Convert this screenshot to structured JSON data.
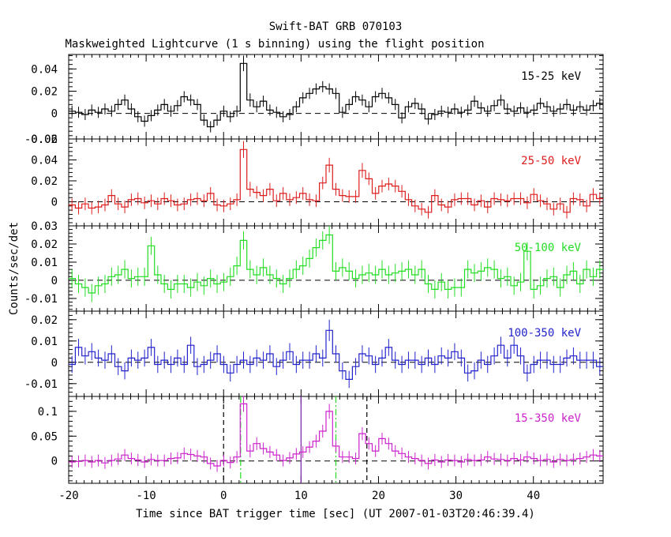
{
  "chart_data": {
    "type": "line",
    "title": "Swift-BAT GRB 070103",
    "subtitle": "Maskweighted Lightcurve (1 s binning) using the flight position",
    "xlabel": "Time since BAT trigger time [sec] (UT 2007-01-03T20:46:39.4)",
    "ylabel": "Counts/sec/det",
    "xlim": [
      -20,
      49
    ],
    "xticks": [
      -20,
      -10,
      0,
      10,
      20,
      30,
      40
    ],
    "panels": [
      {
        "name": "15-25 keV",
        "color": "#000000",
        "ylim": [
          -0.023,
          0.053
        ],
        "yticks": [
          0,
          0.02,
          0.04
        ],
        "ytick_labels": [
          "0",
          "0.02",
          "0.04"
        ],
        "bottom_label": "-0.02",
        "values": [
          0.002,
          0.001,
          -0.001,
          0.003,
          0.001,
          0.004,
          0.002,
          0.008,
          0.012,
          0.004,
          -0.003,
          -0.007,
          -0.002,
          0.003,
          0.008,
          0.002,
          0.007,
          0.015,
          0.012,
          0.008,
          -0.006,
          -0.012,
          -0.006,
          0.002,
          -0.003,
          0.002,
          0.045,
          0.012,
          0.006,
          0.011,
          0.003,
          0.001,
          -0.003,
          -0.001,
          0.006,
          0.014,
          0.018,
          0.022,
          0.024,
          0.022,
          0.018,
          0.001,
          0.008,
          0.015,
          0.012,
          0.006,
          0.015,
          0.018,
          0.014,
          0.008,
          -0.004,
          0.006,
          0.009,
          0.004,
          -0.005,
          -0.001,
          0.002,
          0.001,
          0.004,
          0.001,
          0.003,
          0.011,
          0.005,
          0.002,
          0.007,
          0.012,
          0.004,
          0.002,
          0.005,
          0.001,
          0.003,
          0.009,
          0.006,
          0.002,
          0.004,
          0.008,
          0.003,
          0.006,
          0.003,
          0.007,
          0.009
        ],
        "errors": [
          0.005,
          0.005,
          0.005,
          0.005,
          0.005,
          0.005,
          0.005,
          0.005,
          0.005,
          0.005,
          0.005,
          0.005,
          0.005,
          0.005,
          0.005,
          0.005,
          0.005,
          0.005,
          0.005,
          0.005,
          0.005,
          0.005,
          0.005,
          0.005,
          0.005,
          0.005,
          0.007,
          0.006,
          0.005,
          0.005,
          0.005,
          0.005,
          0.005,
          0.005,
          0.005,
          0.005,
          0.005,
          0.005,
          0.005,
          0.005,
          0.005,
          0.005,
          0.005,
          0.005,
          0.005,
          0.005,
          0.005,
          0.005,
          0.005,
          0.005,
          0.005,
          0.005,
          0.005,
          0.005,
          0.005,
          0.005,
          0.005,
          0.005,
          0.005,
          0.005,
          0.005,
          0.005,
          0.005,
          0.005,
          0.005,
          0.005,
          0.005,
          0.005,
          0.005,
          0.005,
          0.005,
          0.005,
          0.005,
          0.005,
          0.005,
          0.005,
          0.005,
          0.005,
          0.005,
          0.005,
          0.005
        ]
      },
      {
        "name": "25-50 keV",
        "color": "#dd1c1c",
        "ylim": [
          -0.023,
          0.06
        ],
        "yticks": [
          0,
          0.02,
          0.04
        ],
        "ytick_labels": [
          "0",
          "0.02",
          "0.04"
        ],
        "top_label": "0.06",
        "values": [
          -0.003,
          -0.006,
          -0.002,
          -0.006,
          -0.005,
          -0.003,
          0.006,
          -0.002,
          -0.005,
          0.002,
          0.003,
          -0.001,
          0.001,
          -0.002,
          0.003,
          0.001,
          -0.003,
          -0.002,
          0.002,
          0.003,
          0.001,
          0.008,
          -0.003,
          -0.004,
          -0.002,
          0.002,
          0.05,
          0.012,
          0.009,
          0.006,
          0.012,
          0.001,
          0.008,
          0.002,
          0.004,
          0.008,
          0.002,
          0.001,
          0.018,
          0.035,
          0.012,
          0.006,
          0.005,
          0.005,
          0.03,
          0.022,
          0.008,
          0.015,
          0.017,
          0.015,
          0.01,
          0.002,
          -0.004,
          -0.007,
          -0.01,
          0.006,
          -0.003,
          -0.005,
          0.002,
          0.003,
          0.003,
          -0.003,
          0.001,
          -0.005,
          0.003,
          0.002,
          0.001,
          0.003,
          0.003,
          -0.001,
          0.007,
          0.001,
          -0.002,
          -0.007,
          -0.002,
          -0.01,
          0.003,
          0.002,
          -0.004,
          0.007,
          0.003
        ],
        "errors": [
          0.006,
          0.006,
          0.006,
          0.006,
          0.006,
          0.006,
          0.006,
          0.006,
          0.006,
          0.006,
          0.006,
          0.006,
          0.006,
          0.006,
          0.006,
          0.006,
          0.006,
          0.006,
          0.006,
          0.006,
          0.006,
          0.006,
          0.006,
          0.006,
          0.006,
          0.006,
          0.008,
          0.007,
          0.006,
          0.006,
          0.006,
          0.006,
          0.006,
          0.006,
          0.006,
          0.006,
          0.006,
          0.006,
          0.006,
          0.007,
          0.006,
          0.006,
          0.006,
          0.006,
          0.007,
          0.006,
          0.006,
          0.006,
          0.006,
          0.006,
          0.006,
          0.006,
          0.006,
          0.006,
          0.006,
          0.006,
          0.006,
          0.006,
          0.006,
          0.006,
          0.006,
          0.006,
          0.006,
          0.006,
          0.006,
          0.006,
          0.006,
          0.006,
          0.006,
          0.006,
          0.006,
          0.006,
          0.006,
          0.006,
          0.006,
          0.006,
          0.006,
          0.006,
          0.006,
          0.006,
          0.006
        ]
      },
      {
        "name": "50-100 keV",
        "color": "#22dd22",
        "ylim": [
          -0.017,
          0.03
        ],
        "yticks": [
          -0.01,
          0,
          0.01,
          0.02
        ],
        "ytick_labels": [
          "-0.01",
          "0",
          "0.01",
          "0.02"
        ],
        "top_label": "0.03",
        "values": [
          0.001,
          -0.002,
          -0.004,
          -0.007,
          -0.003,
          -0.002,
          0.002,
          0.003,
          0.006,
          0.001,
          0.002,
          0.002,
          0.019,
          0.003,
          -0.002,
          -0.005,
          -0.002,
          -0.002,
          -0.004,
          -0.001,
          -0.003,
          0.001,
          -0.002,
          -0.001,
          0.002,
          0.008,
          0.022,
          0.006,
          0.003,
          0.007,
          0.003,
          0.001,
          -0.002,
          0.001,
          0.006,
          0.008,
          0.012,
          0.018,
          0.022,
          0.025,
          0.005,
          0.007,
          0.005,
          0.001,
          0.003,
          0.004,
          0.003,
          0.006,
          0.003,
          0.004,
          0.005,
          0.006,
          0.003,
          0.006,
          -0.002,
          -0.005,
          -0.001,
          -0.005,
          -0.004,
          -0.004,
          0.006,
          0.004,
          0.005,
          0.007,
          0.006,
          0.001,
          0.002,
          -0.003,
          -0.001,
          0.016,
          -0.005,
          -0.003,
          0.001,
          0.002,
          -0.004,
          0.003,
          0.005,
          -0.002,
          0.006,
          0.002,
          0.006
        ],
        "errors": [
          0.005,
          0.005,
          0.005,
          0.005,
          0.005,
          0.005,
          0.005,
          0.005,
          0.005,
          0.005,
          0.005,
          0.005,
          0.005,
          0.005,
          0.005,
          0.005,
          0.005,
          0.005,
          0.005,
          0.005,
          0.005,
          0.005,
          0.005,
          0.005,
          0.005,
          0.005,
          0.005,
          0.005,
          0.005,
          0.005,
          0.005,
          0.005,
          0.005,
          0.005,
          0.005,
          0.005,
          0.005,
          0.005,
          0.005,
          0.005,
          0.005,
          0.005,
          0.005,
          0.005,
          0.005,
          0.005,
          0.005,
          0.005,
          0.005,
          0.005,
          0.005,
          0.005,
          0.005,
          0.005,
          0.005,
          0.005,
          0.005,
          0.005,
          0.005,
          0.005,
          0.005,
          0.005,
          0.005,
          0.005,
          0.005,
          0.005,
          0.005,
          0.005,
          0.005,
          0.005,
          0.005,
          0.005,
          0.005,
          0.005,
          0.005,
          0.005,
          0.005,
          0.005,
          0.005,
          0.005,
          0.005
        ]
      },
      {
        "name": "100-350 keV",
        "color": "#2222cc",
        "ylim": [
          -0.016,
          0.024
        ],
        "yticks": [
          -0.01,
          0,
          0.01,
          0.02
        ],
        "ytick_labels": [
          "-0.01",
          "0",
          "0.01",
          "0.02"
        ],
        "values": [
          -0.001,
          0.007,
          0.003,
          0.005,
          0.002,
          0.001,
          0.004,
          -0.002,
          -0.004,
          0.002,
          0.001,
          0.002,
          0.007,
          -0.001,
          0.001,
          -0.001,
          0.002,
          -0.001,
          0.008,
          -0.002,
          -0.001,
          0.001,
          0.004,
          -0.001,
          -0.005,
          -0.001,
          0.001,
          -0.001,
          0.002,
          0.001,
          0.004,
          -0.002,
          0.001,
          0.005,
          -0.001,
          0.001,
          0.001,
          0.004,
          0.002,
          0.015,
          0.004,
          -0.004,
          -0.008,
          -0.002,
          0.004,
          0.003,
          -0.001,
          0.002,
          0.007,
          0.001,
          -0.001,
          0.001,
          0.001,
          -0.001,
          0.002,
          -0.001,
          0.003,
          0.002,
          0.005,
          0.002,
          -0.005,
          -0.004,
          0.001,
          -0.001,
          0.003,
          0.008,
          0.002,
          0.008,
          0.003,
          -0.005,
          -0.001,
          0.001,
          0.001,
          -0.001,
          -0.001,
          0.002,
          0.003,
          0.001,
          0.001,
          0.001,
          -0.002
        ],
        "errors": [
          0.004,
          0.004,
          0.004,
          0.004,
          0.004,
          0.004,
          0.004,
          0.004,
          0.004,
          0.004,
          0.004,
          0.004,
          0.004,
          0.004,
          0.004,
          0.004,
          0.004,
          0.004,
          0.004,
          0.004,
          0.004,
          0.004,
          0.004,
          0.004,
          0.004,
          0.004,
          0.004,
          0.004,
          0.004,
          0.004,
          0.004,
          0.004,
          0.004,
          0.004,
          0.004,
          0.004,
          0.004,
          0.004,
          0.004,
          0.005,
          0.004,
          0.004,
          0.004,
          0.004,
          0.004,
          0.004,
          0.004,
          0.004,
          0.004,
          0.004,
          0.004,
          0.004,
          0.004,
          0.004,
          0.004,
          0.004,
          0.004,
          0.004,
          0.004,
          0.004,
          0.004,
          0.004,
          0.004,
          0.004,
          0.004,
          0.004,
          0.004,
          0.004,
          0.004,
          0.004,
          0.004,
          0.004,
          0.004,
          0.004,
          0.004,
          0.004,
          0.004,
          0.004,
          0.004,
          0.004,
          0.004
        ]
      },
      {
        "name": "15-350 keV",
        "color": "#cc22cc",
        "ylim": [
          -0.045,
          0.13
        ],
        "yticks": [
          0,
          0.05,
          0.1
        ],
        "ytick_labels": [
          "0",
          "0.05",
          "0.1"
        ],
        "values": [
          -0.002,
          -0.001,
          0.001,
          -0.002,
          0.001,
          -0.004,
          0.001,
          0.004,
          0.012,
          0.005,
          0.002,
          -0.002,
          0.003,
          0.001,
          0.001,
          0.005,
          0.006,
          0.015,
          0.013,
          0.01,
          0.008,
          -0.005,
          -0.01,
          0.001,
          -0.003,
          0.008,
          0.115,
          0.02,
          0.035,
          0.025,
          0.018,
          0.012,
          0.001,
          0.006,
          0.014,
          0.018,
          0.028,
          0.04,
          0.06,
          0.1,
          0.03,
          0.008,
          0.008,
          0.005,
          0.055,
          0.035,
          0.02,
          0.045,
          0.035,
          0.02,
          0.015,
          0.008,
          0.005,
          0.001,
          -0.005,
          0.002,
          -0.002,
          0.002,
          0.001,
          -0.002,
          0.003,
          0.001,
          0.002,
          0.008,
          0.004,
          0.003,
          0.001,
          0.005,
          0.002,
          0.008,
          0.005,
          0.001,
          0.003,
          -0.002,
          0.003,
          0.001,
          0.003,
          0.005,
          0.008,
          0.012,
          0.01
        ],
        "errors": [
          0.012,
          0.012,
          0.012,
          0.012,
          0.012,
          0.012,
          0.012,
          0.012,
          0.012,
          0.012,
          0.012,
          0.012,
          0.012,
          0.012,
          0.012,
          0.012,
          0.012,
          0.012,
          0.012,
          0.012,
          0.012,
          0.012,
          0.012,
          0.012,
          0.012,
          0.012,
          0.016,
          0.013,
          0.013,
          0.012,
          0.012,
          0.012,
          0.012,
          0.012,
          0.012,
          0.012,
          0.012,
          0.013,
          0.013,
          0.015,
          0.012,
          0.012,
          0.012,
          0.012,
          0.013,
          0.012,
          0.012,
          0.012,
          0.012,
          0.012,
          0.012,
          0.012,
          0.012,
          0.012,
          0.012,
          0.012,
          0.012,
          0.012,
          0.012,
          0.012,
          0.012,
          0.012,
          0.012,
          0.012,
          0.012,
          0.012,
          0.012,
          0.012,
          0.012,
          0.012,
          0.012,
          0.012,
          0.012,
          0.012,
          0.012,
          0.012,
          0.012,
          0.012,
          0.012,
          0.012,
          0.012
        ],
        "markers": [
          {
            "x": 0.0,
            "color": "#000000",
            "style": "dashed"
          },
          {
            "x": 2.2,
            "color": "#22dd22",
            "style": "dashdot"
          },
          {
            "x": 10.0,
            "color": "#7a1fa2",
            "style": "solid"
          },
          {
            "x": 14.5,
            "color": "#22dd22",
            "style": "dashdot"
          },
          {
            "x": 18.5,
            "color": "#000000",
            "style": "dashed"
          }
        ]
      }
    ]
  }
}
